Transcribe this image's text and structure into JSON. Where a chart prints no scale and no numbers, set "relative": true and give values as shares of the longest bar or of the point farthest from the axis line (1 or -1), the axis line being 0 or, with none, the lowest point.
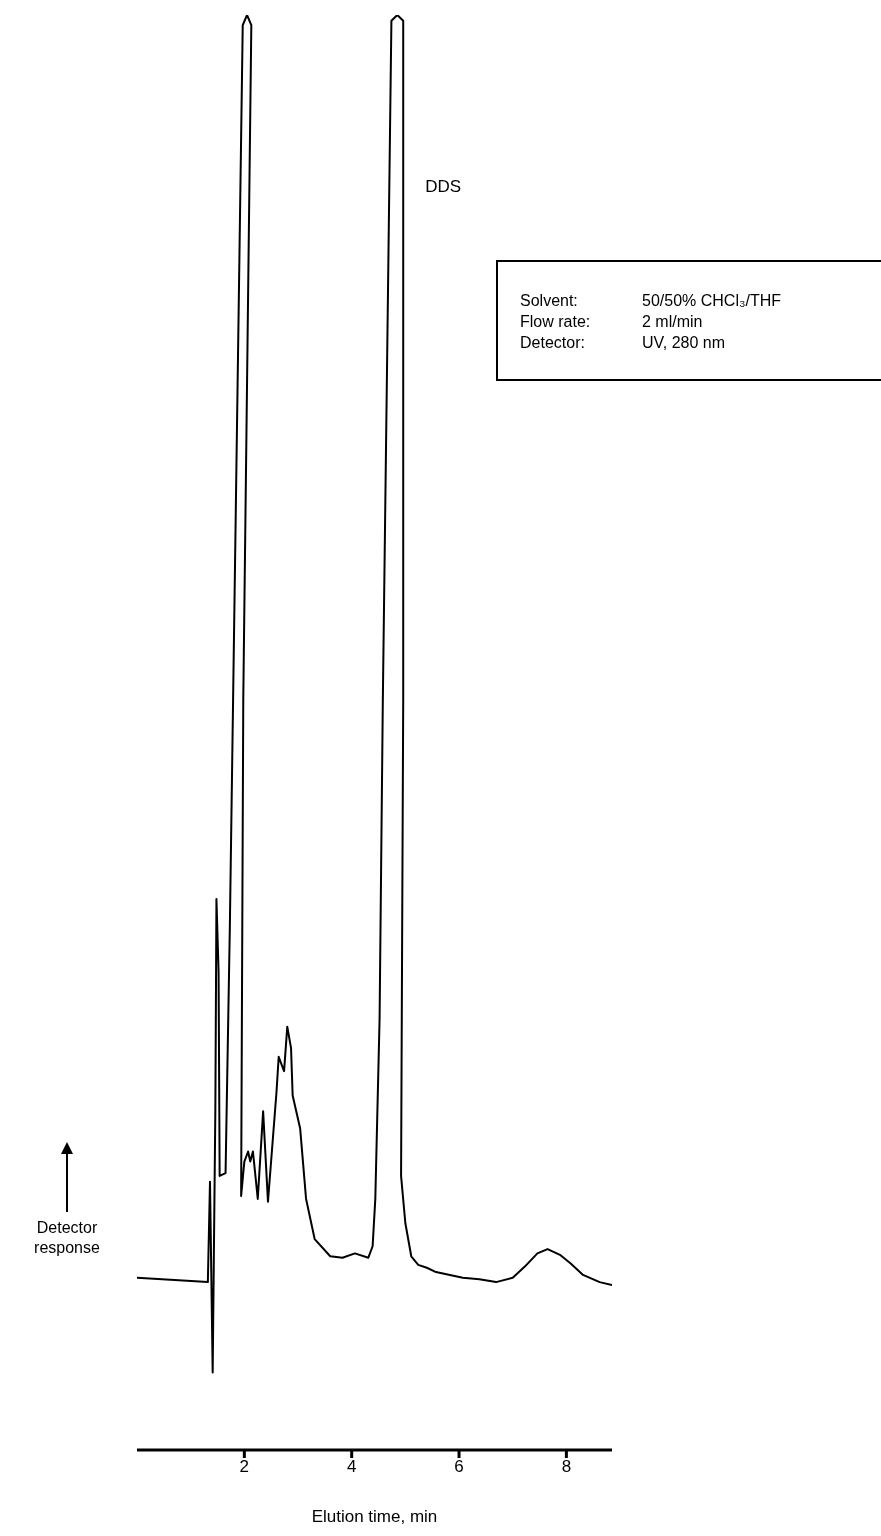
{
  "chart_data": {
    "type": "line",
    "relative": true,
    "xlabel": "Elution time, min",
    "ylabel": "Detector response",
    "xlim": [
      0,
      8.85
    ],
    "xticks": [
      2,
      4,
      6,
      8
    ],
    "grid": false,
    "legend": false,
    "marker": "none",
    "line_style": "solid",
    "x": [
      0.0,
      1.32,
      1.36,
      1.41,
      1.46,
      1.48,
      1.52,
      1.54,
      1.65,
      1.73,
      1.79,
      1.97,
      2.05,
      2.13,
      1.98,
      1.94,
      2.0,
      2.07,
      2.11,
      2.16,
      2.25,
      2.35,
      2.44,
      2.6,
      2.64,
      2.74,
      2.8,
      2.87,
      2.9,
      3.04,
      3.15,
      3.31,
      3.6,
      3.83,
      4.06,
      4.31,
      4.39,
      4.44,
      4.52,
      4.58,
      4.74,
      4.85,
      4.96,
      4.96,
      4.92,
      5.0,
      5.11,
      5.24,
      5.4,
      5.57,
      6.07,
      6.38,
      6.69,
      7.0,
      7.23,
      7.46,
      7.65,
      7.88,
      8.08,
      8.31,
      8.62,
      8.85
    ],
    "series": [
      {
        "color": "#000000",
        "values": [
          0.12,
          0.117,
          0.187,
          0.054,
          0.238,
          0.384,
          0.333,
          0.191,
          0.193,
          0.365,
          0.522,
          0.993,
          1,
          0.993,
          0.523,
          0.177,
          0.201,
          0.208,
          0.201,
          0.208,
          0.175,
          0.236,
          0.173,
          0.25,
          0.274,
          0.264,
          0.295,
          0.28,
          0.247,
          0.224,
          0.175,
          0.147,
          0.135,
          0.134,
          0.137,
          0.134,
          0.142,
          0.175,
          0.301,
          0.522,
          0.996,
          1,
          0.996,
          0.523,
          0.191,
          0.158,
          0.135,
          0.129,
          0.127,
          0.124,
          0.12,
          0.119,
          0.117,
          0.12,
          0.128,
          0.137,
          0.14,
          0.136,
          0.13,
          0.122,
          0.117,
          0.115
        ]
      }
    ],
    "annotations": [
      {
        "text": "DDS",
        "x": 4.85,
        "y": 0.886
      },
      "Solvent: 50/50% CHCl₃/THF",
      "Flow rate: 2 ml/min",
      "Detector: UV, 280 nm"
    ]
  }
}
